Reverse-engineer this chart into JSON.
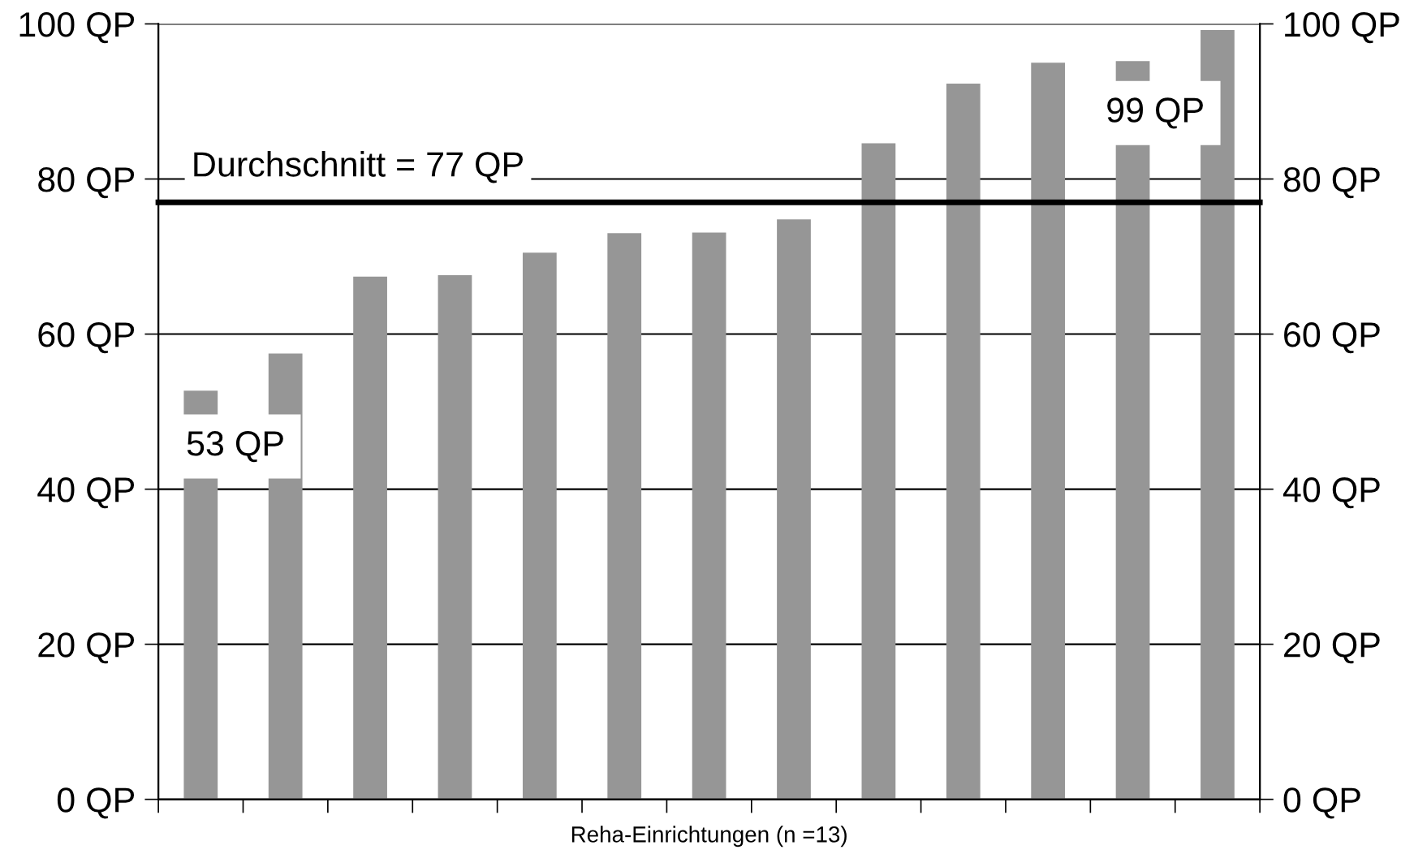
{
  "chart_data": {
    "type": "bar",
    "xlabel": "Reha-Einrichtungen (n =13)",
    "categories": [
      null,
      null,
      null,
      null,
      null,
      null,
      null,
      null,
      null,
      null,
      null,
      null,
      null
    ],
    "values": [
      52.7,
      57.5,
      67.4,
      67.6,
      70.5,
      73.0,
      73.1,
      74.8,
      84.6,
      92.3,
      95.0,
      95.2,
      99.2
    ],
    "color": "#969696",
    "ylim": [
      0,
      100
    ],
    "yticks": [
      {
        "value": 0,
        "label": "0 QP"
      },
      {
        "value": 20,
        "label": "20 QP"
      },
      {
        "value": 40,
        "label": "40 QP"
      },
      {
        "value": 60,
        "label": "60 QP"
      },
      {
        "value": 80,
        "label": "80 QP"
      },
      {
        "value": 100,
        "label": "100 QP"
      }
    ],
    "y2lim": [
      0,
      100
    ],
    "y2ticks": [
      {
        "value": 0,
        "label": "0 QP"
      },
      {
        "value": 20,
        "label": "20 QP"
      },
      {
        "value": 40,
        "label": "40 QP"
      },
      {
        "value": 60,
        "label": "60 QP"
      },
      {
        "value": 80,
        "label": "80 QP"
      },
      {
        "value": 100,
        "label": "100 QP"
      }
    ],
    "ref_lines": [
      {
        "axis": "y",
        "value": 77,
        "label": "Durchschnitt = 77 QP",
        "color": "#000000"
      }
    ],
    "annotations": [
      "53 QP",
      "99 QP"
    ],
    "grid": "y"
  }
}
